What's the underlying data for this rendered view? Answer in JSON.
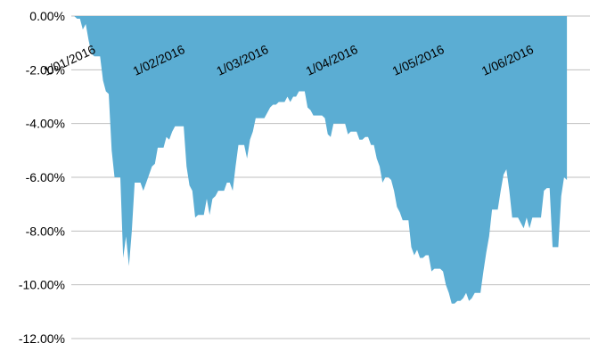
{
  "chart_data": {
    "type": "area",
    "title": "",
    "xlabel": "",
    "ylabel": "",
    "ylim": [
      -12,
      0
    ],
    "grid": true,
    "legend": "none",
    "fill_color": "#5BADD3",
    "grid_color": "#BFBFBF",
    "y_ticks": [
      0,
      -2,
      -4,
      -6,
      -8,
      -10,
      -12
    ],
    "y_tick_labels": [
      "0.00%",
      "-2.00%",
      "-4.00%",
      "-6.00%",
      "-8.00%",
      "-10.00%",
      "-12.00%"
    ],
    "x_ticks": [
      {
        "day": 0,
        "label": "1/01/2016"
      },
      {
        "day": 31,
        "label": "1/02/2016"
      },
      {
        "day": 60,
        "label": "1/03/2016"
      },
      {
        "day": 91,
        "label": "1/04/2016"
      },
      {
        "day": 121,
        "label": "1/05/2016"
      },
      {
        "day": 152,
        "label": "1/06/2016"
      }
    ],
    "x_range_days": [
      0,
      180
    ],
    "series": [
      {
        "points": [
          [
            0,
            0
          ],
          [
            1,
            0
          ],
          [
            2,
            -0.1
          ],
          [
            3,
            -0.1
          ],
          [
            4,
            -0.5
          ],
          [
            5,
            -0.3
          ],
          [
            6,
            -0.9
          ],
          [
            7,
            -1.4
          ],
          [
            8,
            -1.5
          ],
          [
            9,
            -1.5
          ],
          [
            10,
            -1.5
          ],
          [
            11,
            -2.4
          ],
          [
            12,
            -2.8
          ],
          [
            13,
            -2.9
          ],
          [
            14,
            -5.0
          ],
          [
            15,
            -6.0
          ],
          [
            16,
            -6.0
          ],
          [
            17,
            -6.0
          ],
          [
            18,
            -9.0
          ],
          [
            19,
            -8.2
          ],
          [
            20,
            -9.3
          ],
          [
            21,
            -8.0
          ],
          [
            22,
            -6.2
          ],
          [
            23,
            -6.2
          ],
          [
            24,
            -6.2
          ],
          [
            25,
            -6.5
          ],
          [
            26,
            -6.2
          ],
          [
            27,
            -5.9
          ],
          [
            28,
            -5.6
          ],
          [
            29,
            -5.5
          ],
          [
            30,
            -4.9
          ],
          [
            31,
            -4.9
          ],
          [
            32,
            -4.9
          ],
          [
            33,
            -4.5
          ],
          [
            34,
            -4.6
          ],
          [
            35,
            -4.3
          ],
          [
            36,
            -4.1
          ],
          [
            37,
            -4.1
          ],
          [
            38,
            -4.1
          ],
          [
            39,
            -4.1
          ],
          [
            40,
            -5.6
          ],
          [
            41,
            -6.3
          ],
          [
            42,
            -6.5
          ],
          [
            43,
            -7.5
          ],
          [
            44,
            -7.4
          ],
          [
            45,
            -7.4
          ],
          [
            46,
            -7.4
          ],
          [
            47,
            -6.8
          ],
          [
            48,
            -7.4
          ],
          [
            49,
            -6.8
          ],
          [
            50,
            -6.7
          ],
          [
            51,
            -6.5
          ],
          [
            52,
            -6.5
          ],
          [
            53,
            -6.5
          ],
          [
            54,
            -6.2
          ],
          [
            55,
            -6.2
          ],
          [
            56,
            -6.5
          ],
          [
            57,
            -5.6
          ],
          [
            58,
            -4.8
          ],
          [
            59,
            -4.8
          ],
          [
            60,
            -4.8
          ],
          [
            61,
            -5.3
          ],
          [
            62,
            -4.6
          ],
          [
            63,
            -4.3
          ],
          [
            64,
            -3.8
          ],
          [
            65,
            -3.8
          ],
          [
            66,
            -3.8
          ],
          [
            67,
            -3.8
          ],
          [
            68,
            -3.6
          ],
          [
            69,
            -3.4
          ],
          [
            70,
            -3.3
          ],
          [
            71,
            -3.3
          ],
          [
            72,
            -3.2
          ],
          [
            73,
            -3.2
          ],
          [
            74,
            -3.2
          ],
          [
            75,
            -3.0
          ],
          [
            76,
            -3.2
          ],
          [
            77,
            -3.0
          ],
          [
            78,
            -3.0
          ],
          [
            79,
            -2.8
          ],
          [
            80,
            -2.8
          ],
          [
            81,
            -2.8
          ],
          [
            82,
            -3.4
          ],
          [
            83,
            -3.5
          ],
          [
            84,
            -3.7
          ],
          [
            85,
            -3.7
          ],
          [
            86,
            -3.7
          ],
          [
            87,
            -3.7
          ],
          [
            88,
            -3.8
          ],
          [
            89,
            -4.4
          ],
          [
            90,
            -4.5
          ],
          [
            91,
            -4.0
          ],
          [
            92,
            -4.0
          ],
          [
            93,
            -4.0
          ],
          [
            94,
            -4.0
          ],
          [
            95,
            -4.0
          ],
          [
            96,
            -4.4
          ],
          [
            97,
            -4.3
          ],
          [
            98,
            -4.3
          ],
          [
            99,
            -4.3
          ],
          [
            100,
            -4.6
          ],
          [
            101,
            -4.6
          ],
          [
            102,
            -4.5
          ],
          [
            103,
            -4.5
          ],
          [
            104,
            -4.8
          ],
          [
            105,
            -4.8
          ],
          [
            106,
            -5.3
          ],
          [
            107,
            -5.6
          ],
          [
            108,
            -6.2
          ],
          [
            109,
            -6.0
          ],
          [
            110,
            -6.0
          ],
          [
            111,
            -6.1
          ],
          [
            112,
            -6.5
          ],
          [
            113,
            -7.1
          ],
          [
            114,
            -7.3
          ],
          [
            115,
            -7.6
          ],
          [
            116,
            -7.6
          ],
          [
            117,
            -7.6
          ],
          [
            118,
            -8.6
          ],
          [
            119,
            -8.9
          ],
          [
            120,
            -8.7
          ],
          [
            121,
            -9.0
          ],
          [
            122,
            -9.0
          ],
          [
            123,
            -8.9
          ],
          [
            124,
            -8.9
          ],
          [
            125,
            -9.5
          ],
          [
            126,
            -9.4
          ],
          [
            127,
            -9.4
          ],
          [
            128,
            -9.4
          ],
          [
            129,
            -9.5
          ],
          [
            130,
            -10.0
          ],
          [
            131,
            -10.3
          ],
          [
            132,
            -10.7
          ],
          [
            133,
            -10.7
          ],
          [
            134,
            -10.6
          ],
          [
            135,
            -10.6
          ],
          [
            136,
            -10.5
          ],
          [
            137,
            -10.3
          ],
          [
            138,
            -10.6
          ],
          [
            139,
            -10.5
          ],
          [
            140,
            -10.3
          ],
          [
            141,
            -10.3
          ],
          [
            142,
            -10.3
          ],
          [
            143,
            -9.5
          ],
          [
            144,
            -8.8
          ],
          [
            145,
            -8.2
          ],
          [
            146,
            -7.2
          ],
          [
            147,
            -7.2
          ],
          [
            148,
            -7.2
          ],
          [
            149,
            -6.5
          ],
          [
            150,
            -5.9
          ],
          [
            151,
            -5.7
          ],
          [
            152,
            -6.5
          ],
          [
            153,
            -7.5
          ],
          [
            154,
            -7.5
          ],
          [
            155,
            -7.5
          ],
          [
            156,
            -7.7
          ],
          [
            157,
            -7.9
          ],
          [
            158,
            -7.5
          ],
          [
            159,
            -7.9
          ],
          [
            160,
            -7.5
          ],
          [
            161,
            -7.5
          ],
          [
            162,
            -7.5
          ],
          [
            163,
            -7.5
          ],
          [
            164,
            -6.5
          ],
          [
            165,
            -6.4
          ],
          [
            166,
            -6.4
          ],
          [
            167,
            -8.6
          ],
          [
            168,
            -8.6
          ],
          [
            169,
            -8.6
          ],
          [
            170,
            -6.7
          ],
          [
            171,
            -6.0
          ],
          [
            172,
            -6.1
          ]
        ]
      }
    ]
  }
}
